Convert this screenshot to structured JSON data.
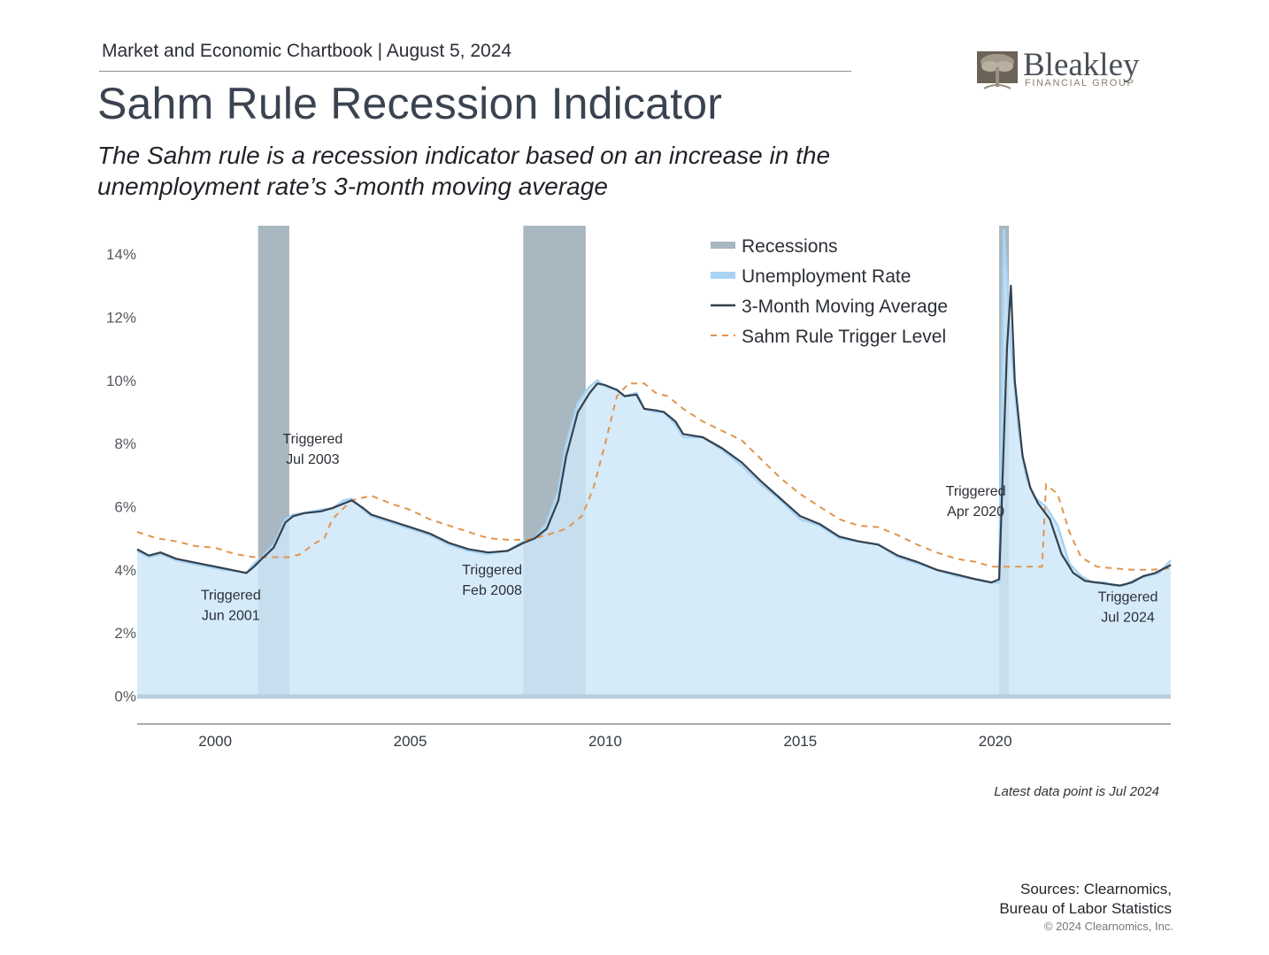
{
  "header": {
    "chartbook_line": "Market and Economic Chartbook | August 5, 2024",
    "title": "Sahm Rule Recession Indicator",
    "subtitle_line1": "The Sahm rule is a recession indicator based on an increase in the",
    "subtitle_line2": "unemployment rate’s 3-month moving average"
  },
  "logo": {
    "name": "Bleakley",
    "tagline": "FINANCIAL GROUP",
    "icon": "tree-icon"
  },
  "colors": {
    "recession": "#a9b7c0",
    "unemployment_fill": "#cde6f8",
    "unemployment_line": "#a9d3f3",
    "moving_average": "#33414f",
    "trigger": "#e0954d",
    "axis_text": "#555a60"
  },
  "chart_data": {
    "type": "area",
    "x_axis": {
      "ticks": [
        2000,
        2005,
        2010,
        2015,
        2020
      ],
      "range": [
        1998.0,
        2024.5
      ]
    },
    "y_axis": {
      "ticks": [
        "0%",
        "2%",
        "4%",
        "6%",
        "8%",
        "10%",
        "12%",
        "14%"
      ],
      "tick_values": [
        0,
        2,
        4,
        6,
        8,
        10,
        12,
        14
      ],
      "range": [
        -0.8,
        14.9
      ]
    },
    "legend": {
      "placement": "top-center",
      "entries": [
        {
          "key": "recessions",
          "label": "Recessions"
        },
        {
          "key": "unemployment",
          "label": "Unemployment Rate"
        },
        {
          "key": "moving_average",
          "label": "3-Month Moving Average"
        },
        {
          "key": "trigger",
          "label": "Sahm Rule Trigger Level"
        }
      ]
    },
    "recessions": [
      {
        "start": 2001.1,
        "end": 2001.9
      },
      {
        "start": 2007.9,
        "end": 2009.5
      },
      {
        "start": 2020.1,
        "end": 2020.35
      }
    ],
    "series": [
      {
        "name": "Unemployment Rate",
        "x": [
          1998.0,
          1998.3,
          1998.6,
          1999.0,
          1999.4,
          1999.8,
          2000.2,
          2000.6,
          2000.8,
          2001.0,
          2001.2,
          2001.5,
          2001.8,
          2002.0,
          2002.3,
          2002.7,
          2003.0,
          2003.3,
          2003.5,
          2003.8,
          2004.0,
          2004.5,
          2005.0,
          2005.5,
          2006.0,
          2006.5,
          2007.0,
          2007.5,
          2007.9,
          2008.2,
          2008.5,
          2008.8,
          2009.0,
          2009.3,
          2009.6,
          2009.8,
          2010.0,
          2010.3,
          2010.5,
          2010.8,
          2011.0,
          2011.3,
          2011.5,
          2011.8,
          2012.0,
          2012.5,
          2013.0,
          2013.5,
          2014.0,
          2014.5,
          2015.0,
          2015.5,
          2016.0,
          2016.5,
          2017.0,
          2017.5,
          2018.0,
          2018.5,
          2019.0,
          2019.5,
          2019.9,
          2020.1,
          2020.22,
          2020.3,
          2020.4,
          2020.6,
          2020.8,
          2021.0,
          2021.3,
          2021.6,
          2021.9,
          2022.2,
          2022.5,
          2022.8,
          2023.0,
          2023.3,
          2023.6,
          2023.9,
          2024.2,
          2024.5
        ],
        "values": [
          4.6,
          4.4,
          4.5,
          4.3,
          4.2,
          4.1,
          4.0,
          3.95,
          3.9,
          4.2,
          4.4,
          4.8,
          5.6,
          5.75,
          5.8,
          5.9,
          5.95,
          6.2,
          6.25,
          5.9,
          5.7,
          5.5,
          5.3,
          5.1,
          4.8,
          4.6,
          4.5,
          4.6,
          4.9,
          5.0,
          5.5,
          6.5,
          8.0,
          9.3,
          9.8,
          10.0,
          9.8,
          9.7,
          9.5,
          9.6,
          9.1,
          9.0,
          9.0,
          8.6,
          8.2,
          8.2,
          7.8,
          7.3,
          6.7,
          6.2,
          5.6,
          5.4,
          5.0,
          4.9,
          4.8,
          4.4,
          4.2,
          4.0,
          3.8,
          3.7,
          3.6,
          3.6,
          14.8,
          13.2,
          11.1,
          8.4,
          6.9,
          6.3,
          6.0,
          5.4,
          4.2,
          3.8,
          3.6,
          3.6,
          3.5,
          3.5,
          3.7,
          3.8,
          3.9,
          4.3
        ]
      },
      {
        "name": "3-Month Moving Average",
        "x": [
          1998.0,
          1998.3,
          1998.6,
          1999.0,
          1999.4,
          1999.8,
          2000.2,
          2000.6,
          2000.8,
          2001.0,
          2001.2,
          2001.5,
          2001.8,
          2002.0,
          2002.3,
          2002.7,
          2003.0,
          2003.3,
          2003.5,
          2003.8,
          2004.0,
          2004.5,
          2005.0,
          2005.5,
          2006.0,
          2006.5,
          2007.0,
          2007.5,
          2007.9,
          2008.2,
          2008.5,
          2008.8,
          2009.0,
          2009.3,
          2009.6,
          2009.8,
          2010.0,
          2010.3,
          2010.5,
          2010.8,
          2011.0,
          2011.3,
          2011.5,
          2011.8,
          2012.0,
          2012.5,
          2013.0,
          2013.5,
          2014.0,
          2014.5,
          2015.0,
          2015.5,
          2016.0,
          2016.5,
          2017.0,
          2017.5,
          2018.0,
          2018.5,
          2019.0,
          2019.5,
          2019.9,
          2020.1,
          2020.3,
          2020.4,
          2020.5,
          2020.7,
          2020.9,
          2021.1,
          2021.4,
          2021.7,
          2022.0,
          2022.3,
          2022.6,
          2022.9,
          2023.2,
          2023.5,
          2023.8,
          2024.1,
          2024.5
        ],
        "values": [
          4.65,
          4.45,
          4.55,
          4.35,
          4.25,
          4.15,
          4.05,
          3.95,
          3.9,
          4.1,
          4.35,
          4.7,
          5.5,
          5.7,
          5.8,
          5.85,
          5.95,
          6.1,
          6.2,
          5.95,
          5.75,
          5.55,
          5.35,
          5.15,
          4.85,
          4.65,
          4.55,
          4.6,
          4.85,
          5.0,
          5.3,
          6.2,
          7.6,
          9.0,
          9.6,
          9.9,
          9.85,
          9.7,
          9.5,
          9.55,
          9.1,
          9.05,
          9.0,
          8.7,
          8.3,
          8.2,
          7.85,
          7.4,
          6.8,
          6.25,
          5.7,
          5.45,
          5.05,
          4.9,
          4.8,
          4.45,
          4.25,
          4.0,
          3.85,
          3.7,
          3.6,
          3.7,
          11.0,
          13.0,
          10.0,
          7.6,
          6.6,
          6.1,
          5.6,
          4.5,
          3.9,
          3.65,
          3.6,
          3.55,
          3.5,
          3.6,
          3.8,
          3.9,
          4.15
        ]
      },
      {
        "name": "Sahm Rule Trigger Level",
        "x": [
          1998.0,
          1998.5,
          1999.0,
          1999.5,
          2000.0,
          2000.5,
          2001.0,
          2001.5,
          2001.9,
          2002.2,
          2002.5,
          2002.8,
          2003.0,
          2003.5,
          2004.0,
          2004.5,
          2005.0,
          2005.5,
          2006.0,
          2006.5,
          2007.0,
          2007.5,
          2008.0,
          2008.5,
          2009.0,
          2009.4,
          2009.7,
          2010.0,
          2010.3,
          2010.6,
          2011.0,
          2011.3,
          2011.6,
          2012.0,
          2012.5,
          2013.0,
          2013.5,
          2014.0,
          2014.5,
          2015.0,
          2015.5,
          2016.0,
          2016.5,
          2017.0,
          2017.5,
          2018.0,
          2018.5,
          2019.0,
          2019.5,
          2019.9,
          2020.2,
          2020.6,
          2021.0,
          2021.2,
          2021.3,
          2021.6,
          2021.9,
          2022.2,
          2022.6,
          2023.0,
          2023.5,
          2024.0,
          2024.5
        ],
        "values": [
          5.2,
          5.0,
          4.9,
          4.75,
          4.7,
          4.5,
          4.4,
          4.4,
          4.4,
          4.5,
          4.8,
          5.0,
          5.6,
          6.2,
          6.35,
          6.1,
          5.9,
          5.6,
          5.4,
          5.2,
          5.0,
          4.95,
          4.95,
          5.1,
          5.3,
          5.7,
          6.6,
          8.0,
          9.5,
          9.9,
          9.9,
          9.6,
          9.5,
          9.1,
          8.7,
          8.4,
          8.1,
          7.5,
          6.9,
          6.4,
          6.0,
          5.6,
          5.4,
          5.35,
          5.1,
          4.8,
          4.55,
          4.35,
          4.25,
          4.1,
          4.1,
          4.1,
          4.1,
          4.1,
          6.7,
          6.4,
          5.2,
          4.4,
          4.1,
          4.05,
          4.0,
          4.0,
          4.05
        ]
      }
    ],
    "annotations": [
      {
        "line1": "Triggered",
        "line2": "Jun 2001",
        "x": 2000.4,
        "y": 3.05
      },
      {
        "line1": "Triggered",
        "line2": "Jul 2003",
        "x": 2002.5,
        "y": 8.0
      },
      {
        "line1": "Triggered",
        "line2": "Feb 2008",
        "x": 2007.1,
        "y": 3.85
      },
      {
        "line1": "Triggered",
        "line2": "Apr 2020",
        "x": 2019.5,
        "y": 6.35
      },
      {
        "line1": "Triggered",
        "line2": "Jul 2024",
        "x": 2023.4,
        "y": 3.0
      }
    ]
  },
  "footer": {
    "latest_note": "Latest data point is Jul 2024",
    "sources_line1": "Sources: Clearnomics,",
    "sources_line2": "Bureau of Labor Statistics",
    "copyright": "© 2024 Clearnomics, Inc."
  }
}
